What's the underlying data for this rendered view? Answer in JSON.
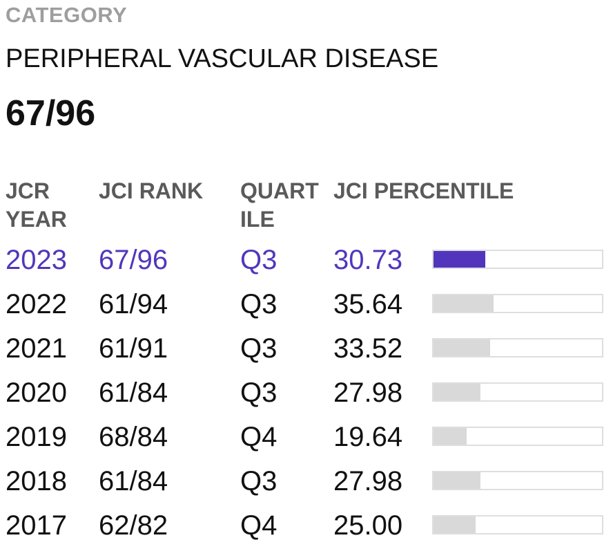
{
  "category": {
    "label": "CATEGORY",
    "name": "PERIPHERAL VASCULAR DISEASE",
    "rank": "67/96"
  },
  "table": {
    "headers": {
      "year": "JCR YEAR",
      "rank": "JCI RANK",
      "quartile": "QUARTILE",
      "percentile": "JCI PERCENTILE"
    },
    "highlight_color": "#5136bd",
    "bar_color": "#d9d9d9",
    "rows": [
      {
        "year": "2023",
        "rank": "67/96",
        "quartile": "Q3",
        "percentile": "30.73",
        "current": true
      },
      {
        "year": "2022",
        "rank": "61/94",
        "quartile": "Q3",
        "percentile": "35.64",
        "current": false
      },
      {
        "year": "2021",
        "rank": "61/91",
        "quartile": "Q3",
        "percentile": "33.52",
        "current": false
      },
      {
        "year": "2020",
        "rank": "61/84",
        "quartile": "Q3",
        "percentile": "27.98",
        "current": false
      },
      {
        "year": "2019",
        "rank": "68/84",
        "quartile": "Q4",
        "percentile": "19.64",
        "current": false
      },
      {
        "year": "2018",
        "rank": "61/84",
        "quartile": "Q3",
        "percentile": "27.98",
        "current": false
      },
      {
        "year": "2017",
        "rank": "62/82",
        "quartile": "Q4",
        "percentile": "25.00",
        "current": false
      }
    ]
  }
}
